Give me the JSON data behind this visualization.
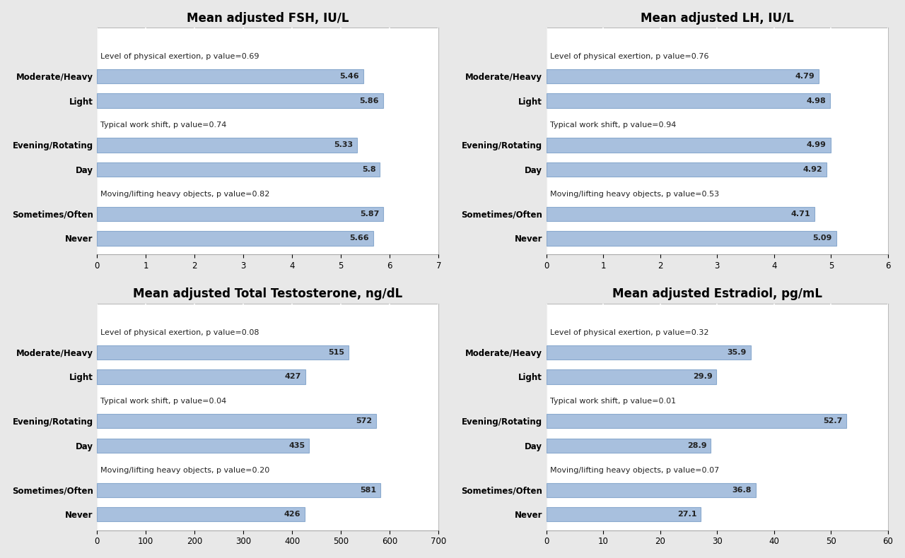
{
  "charts": [
    {
      "title": "Mean adjusted FSH, IU/L",
      "xlim": [
        0,
        7
      ],
      "xticks": [
        0,
        1,
        2,
        3,
        4,
        5,
        6,
        7
      ],
      "groups": [
        {
          "label": "Level of physical exertion, p value=0.69",
          "bars": [
            {
              "name": "Moderate/Heavy",
              "value": 5.46
            },
            {
              "name": "Light",
              "value": 5.86
            }
          ]
        },
        {
          "label": "Typical work shift, p value=0.74",
          "bars": [
            {
              "name": "Evening/Rotating",
              "value": 5.33
            },
            {
              "name": "Day",
              "value": 5.8
            }
          ]
        },
        {
          "label": "Moving/lifting heavy objects, p value=0.82",
          "bars": [
            {
              "name": "Sometimes/Often",
              "value": 5.87
            },
            {
              "name": "Never",
              "value": 5.66
            }
          ]
        }
      ]
    },
    {
      "title": "Mean adjusted LH, IU/L",
      "xlim": [
        0,
        6
      ],
      "xticks": [
        0,
        1,
        2,
        3,
        4,
        5,
        6
      ],
      "groups": [
        {
          "label": "Level of physical exertion, p value=0.76",
          "bars": [
            {
              "name": "Moderate/Heavy",
              "value": 4.79
            },
            {
              "name": "Light",
              "value": 4.98
            }
          ]
        },
        {
          "label": "Typical work shift, p value=0.94",
          "bars": [
            {
              "name": "Evening/Rotating",
              "value": 4.99
            },
            {
              "name": "Day",
              "value": 4.92
            }
          ]
        },
        {
          "label": "Moving/lifting heavy objects, p value=0.53",
          "bars": [
            {
              "name": "Sometimes/Often",
              "value": 4.71
            },
            {
              "name": "Never",
              "value": 5.09
            }
          ]
        }
      ]
    },
    {
      "title": "Mean adjusted Total Testosterone, ng/dL",
      "xlim": [
        0,
        700
      ],
      "xticks": [
        0,
        100,
        200,
        300,
        400,
        500,
        600,
        700
      ],
      "groups": [
        {
          "label": "Level of physical exertion, p value=0.08",
          "bars": [
            {
              "name": "Moderate/Heavy",
              "value": 515
            },
            {
              "name": "Light",
              "value": 427
            }
          ]
        },
        {
          "label": "Typical work shift, p value=0.04",
          "bars": [
            {
              "name": "Evening/Rotating",
              "value": 572
            },
            {
              "name": "Day",
              "value": 435
            }
          ]
        },
        {
          "label": "Moving/lifting heavy objects, p value=0.20",
          "bars": [
            {
              "name": "Sometimes/Often",
              "value": 581
            },
            {
              "name": "Never",
              "value": 426
            }
          ]
        }
      ]
    },
    {
      "title": "Mean adjusted Estradiol, pg/mL",
      "xlim": [
        0,
        60
      ],
      "xticks": [
        0,
        10,
        20,
        30,
        40,
        50,
        60
      ],
      "groups": [
        {
          "label": "Level of physical exertion, p value=0.32",
          "bars": [
            {
              "name": "Moderate/Heavy",
              "value": 35.9
            },
            {
              "name": "Light",
              "value": 29.9
            }
          ]
        },
        {
          "label": "Typical work shift, p value=0.01",
          "bars": [
            {
              "name": "Evening/Rotating",
              "value": 52.7
            },
            {
              "name": "Day",
              "value": 28.9
            }
          ]
        },
        {
          "label": "Moving/lifting heavy objects, p value=0.07",
          "bars": [
            {
              "name": "Sometimes/Often",
              "value": 36.8
            },
            {
              "name": "Never",
              "value": 27.1
            }
          ]
        }
      ]
    }
  ],
  "bar_color": "#a8c0de",
  "bar_edgecolor": "#8aaace",
  "label_fontsize": 8.5,
  "title_fontsize": 12,
  "group_label_fontsize": 8,
  "value_fontsize": 8,
  "bg_color": "#ffffff",
  "fig_bg_color": "#e8e8e8",
  "grid_color": "#ffffff"
}
